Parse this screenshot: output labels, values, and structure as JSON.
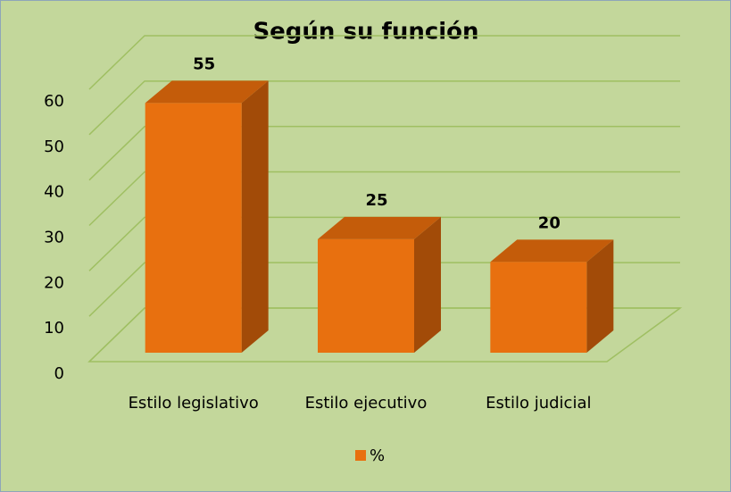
{
  "chart_data": {
    "type": "bar3d",
    "title": "Según su función",
    "categories": [
      "Estilo legislativo",
      "Estilo ejecutivo",
      "Estilo judicial"
    ],
    "series": [
      {
        "name": "%",
        "color": "#e8700f",
        "values": [
          55,
          25,
          20
        ]
      }
    ],
    "ylim": [
      0,
      60
    ],
    "yticks": [
      0,
      10,
      20,
      30,
      40,
      50,
      60
    ],
    "grid": true,
    "legend": "bottom"
  }
}
